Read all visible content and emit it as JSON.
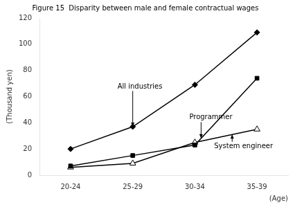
{
  "chart_data": {
    "type": "line",
    "title": "Figure 15  Disparity between male and female contractual wages",
    "xlabel": "(Age)",
    "ylabel": "(Thousand yen)",
    "categories": [
      "20-24",
      "25-29",
      "30-34",
      "35-39"
    ],
    "series": [
      {
        "name": "All industries",
        "color": "#000000",
        "marker": "diamond",
        "values": [
          20,
          37,
          69,
          109
        ]
      },
      {
        "name": "Programmer",
        "color": "#000000",
        "marker": "square",
        "values": [
          7,
          15,
          23,
          74
        ]
      },
      {
        "name": "System engineer",
        "color": "#000000",
        "marker": "triangle_open",
        "values": [
          6,
          9,
          25,
          35
        ]
      }
    ],
    "ylim": [
      0,
      120
    ],
    "yticks": [
      0,
      20,
      40,
      60,
      80,
      100,
      120
    ],
    "grid": false,
    "annotations": [
      "All industries",
      "Programmer",
      "System engineer"
    ]
  }
}
